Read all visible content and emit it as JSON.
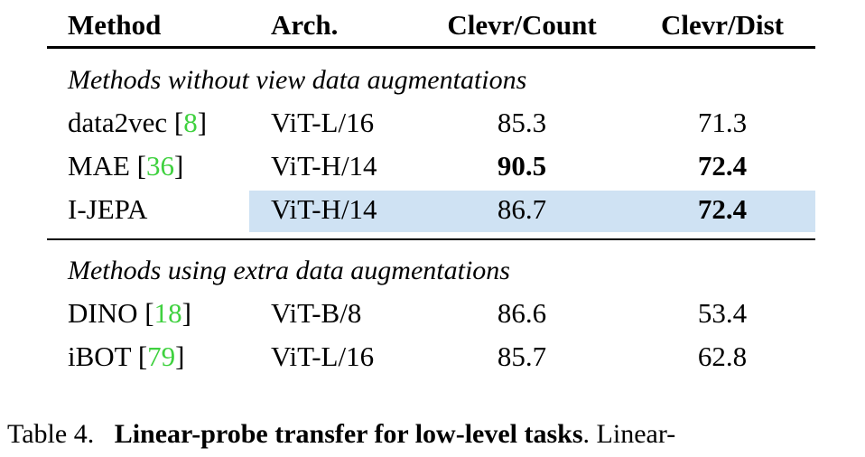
{
  "table": {
    "columns": [
      "Method",
      "Arch.",
      "Clevr/Count",
      "Clevr/Dist"
    ],
    "groups": [
      {
        "title": "Methods without view data augmentations",
        "rows": [
          {
            "method": "data2vec",
            "ref": 8,
            "arch": "ViT-L/16",
            "count": 85.3,
            "dist": 71.3
          },
          {
            "method": "MAE",
            "ref": 36,
            "arch": "ViT-H/14",
            "count": 90.5,
            "dist": 72.4
          },
          {
            "method": "I-JEPA",
            "arch": "ViT-H/14",
            "count": 86.7,
            "dist": 72.4
          }
        ]
      },
      {
        "title": "Methods using extra data augmentations",
        "rows": [
          {
            "method": "DINO",
            "ref": 18,
            "arch": "ViT-B/8",
            "count": 86.6,
            "dist": 53.4
          },
          {
            "method": "iBOT",
            "ref": 79,
            "arch": "ViT-L/16",
            "count": 85.7,
            "dist": 62.8
          }
        ]
      }
    ]
  },
  "caption": {
    "label": "Table 4.",
    "bold": "Linear-probe transfer for low-level tasks",
    "rest": ". Linear-"
  }
}
